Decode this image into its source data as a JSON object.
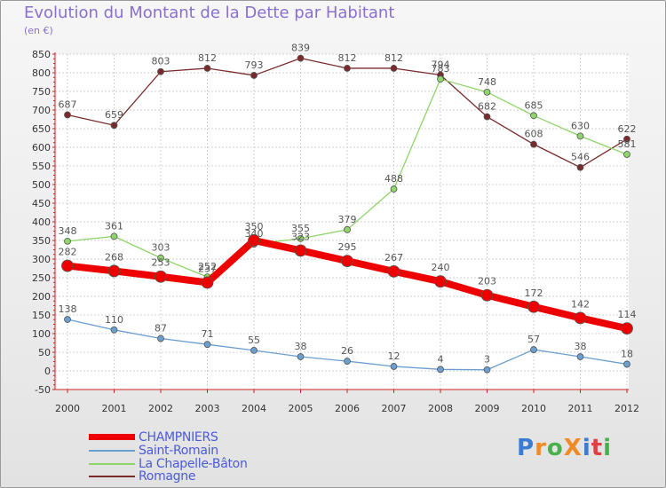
{
  "title": "Evolution du Montant de la Dette par Habitant",
  "unit": "(en €)",
  "logo": {
    "text": "ProXiti",
    "letters": [
      "P",
      "r",
      "o",
      "X",
      "i",
      "t",
      "i"
    ],
    "colors": [
      "#3a7bd5",
      "#f08a24",
      "#4ab04a",
      "#f08a24",
      "#3a7bd5",
      "#e04040",
      "#4ab04a"
    ]
  },
  "chart_data": {
    "type": "line",
    "title": "Evolution du Montant de la Dette par Habitant",
    "ylabel": "(en €)",
    "xlabel": "",
    "x": [
      "2000",
      "2001",
      "2002",
      "2003",
      "2004",
      "2005",
      "2006",
      "2007",
      "2008",
      "2009",
      "2010",
      "2011",
      "2012"
    ],
    "ylim": [
      -50,
      850
    ],
    "yticks": [
      -50,
      0,
      50,
      100,
      150,
      200,
      250,
      300,
      350,
      400,
      450,
      500,
      550,
      600,
      650,
      700,
      750,
      800,
      850
    ],
    "grid": true,
    "legend_position": "bottom-left",
    "series": [
      {
        "name": "Romagne",
        "color": "#7a2a2a",
        "width": 1.3,
        "marker": 3.5,
        "values": [
          687,
          659,
          803,
          812,
          793,
          839,
          812,
          812,
          794,
          682,
          608,
          546,
          622
        ]
      },
      {
        "name": "La Chapelle-Bâton",
        "color": "#8fd66a",
        "width": 1.3,
        "marker": 3.5,
        "values": [
          348,
          361,
          303,
          252,
          340,
          355,
          379,
          488,
          783,
          748,
          685,
          630,
          581
        ]
      },
      {
        "name": "Saint-Romain",
        "color": "#6a9fd0",
        "width": 1.3,
        "marker": 3.5,
        "values": [
          138,
          110,
          87,
          71,
          55,
          38,
          26,
          12,
          4,
          3,
          57,
          38,
          18
        ]
      },
      {
        "name": "CHAMPNIERS",
        "color": "#ee0000",
        "width": 8,
        "marker": 6.5,
        "values": [
          282,
          268,
          253,
          237,
          350,
          323,
          295,
          267,
          240,
          203,
          172,
          142,
          114
        ]
      }
    ],
    "legend_order": [
      "CHAMPNIERS",
      "Saint-Romain",
      "La Chapelle-Bâton",
      "Romagne"
    ]
  }
}
